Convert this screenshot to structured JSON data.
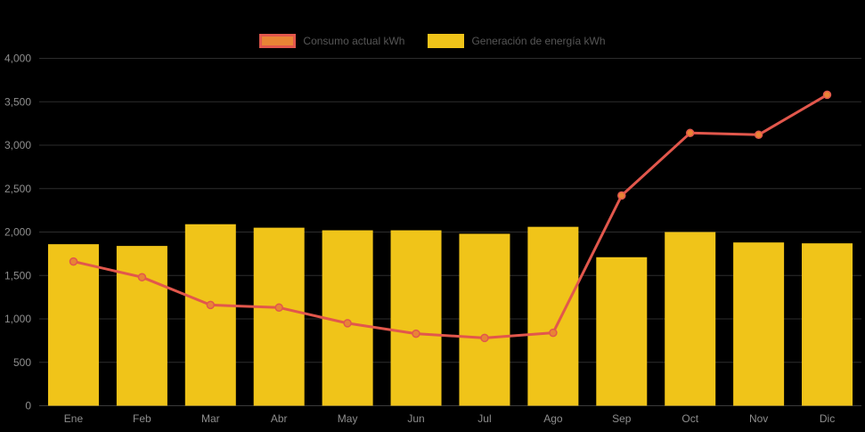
{
  "chart_data": {
    "type": "combo",
    "title": "",
    "categories": [
      "Ene",
      "Feb",
      "Mar",
      "Abr",
      "May",
      "Jun",
      "Jul",
      "Ago",
      "Sep",
      "Oct",
      "Nov",
      "Dic"
    ],
    "series": [
      {
        "name": "Consumo actual kWh",
        "type": "line",
        "color": "#e2574c",
        "point_color": "#e88435",
        "values": [
          1660,
          1480,
          1160,
          1130,
          950,
          830,
          780,
          840,
          2420,
          3140,
          3120,
          3580
        ]
      },
      {
        "name": "Generación de energía kWh",
        "type": "bar",
        "color": "#f0c419",
        "values": [
          1860,
          1840,
          2090,
          2050,
          2020,
          2020,
          1980,
          2060,
          1710,
          2000,
          1880,
          1870
        ]
      }
    ],
    "ylim": [
      0,
      4000
    ],
    "ytick_step": 500,
    "ytick_labels": [
      "0",
      "500",
      "1,000",
      "1,500",
      "2,000",
      "2,500",
      "3,000",
      "3,500",
      "4,000"
    ],
    "grid": true,
    "legend_position": "top",
    "background": "#000000",
    "axis_label_color": "#8e8e8e",
    "legend_text_color": "#565656",
    "grid_color": "#2d2d2d",
    "axis_line_color": "#3a3a3a"
  }
}
